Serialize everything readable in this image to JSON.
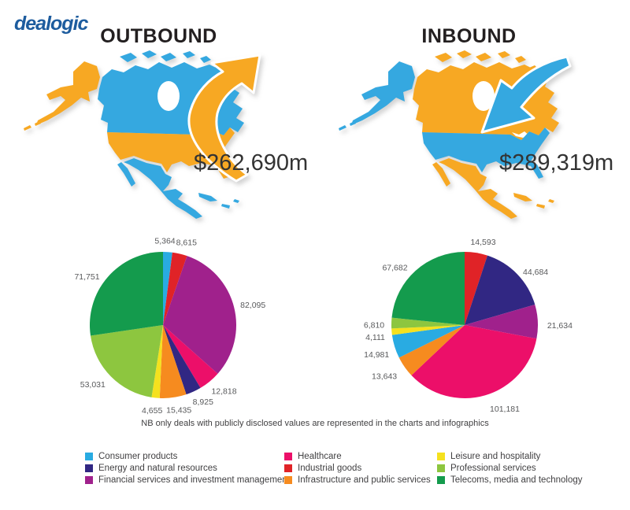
{
  "brand": {
    "logo_text": "dealogic"
  },
  "sections": {
    "outbound": {
      "title": "OUTBOUND",
      "total": "$262,690m"
    },
    "inbound": {
      "title": "INBOUND",
      "total": "$289,319m"
    }
  },
  "note": "NB only deals with publicly disclosed values are represented in the charts and infographics",
  "colors": {
    "logo": "#1D5C9E",
    "map_orange": "#F7A823",
    "map_blue": "#35A8E0",
    "heading_ink": "#231F20",
    "value_ink": "#333333",
    "label_ink": "#58595B",
    "categories": {
      "Consumer products": "#29ABE2",
      "Energy and natural resources": "#312783",
      "Financial services and investment management": "#A0218C",
      "Healthcare": "#EC0F69",
      "Industrial goods": "#E02327",
      "Infrastructure and public services": "#F68B1F",
      "Leisure and hospitality": "#F5E11E",
      "Professional services": "#8DC63F",
      "Telecoms, media and technology": "#149B4D"
    }
  },
  "legend": {
    "columns": [
      [
        "Consumer products",
        "Energy and natural resources",
        "Financial services and investment management"
      ],
      [
        "Healthcare",
        "Industrial goods",
        "Infrastructure and public services"
      ],
      [
        "Leisure and hospitality",
        "Professional services",
        "Telecoms, media and technology"
      ]
    ]
  },
  "chart_data": [
    {
      "type": "pie",
      "title": "OUTBOUND",
      "total_value": 262690,
      "total_label": "$262,690m",
      "start_angle": 0,
      "clockwise": true,
      "legend_position": "bottom-shared",
      "slices": [
        {
          "category": "Consumer products",
          "value": 5364,
          "label": "5,364",
          "label_offset": [
            -5,
            10
          ]
        },
        {
          "category": "Industrial goods",
          "value": 8615,
          "label": "8,615",
          "label_offset": [
            3,
            9
          ]
        },
        {
          "category": "Financial services and investment management",
          "value": 82095,
          "label": "82,095",
          "label_offset": [
            1,
            4
          ]
        },
        {
          "category": "Healthcare",
          "value": 12818,
          "label": "12,818",
          "label_offset": [
            3,
            -6
          ]
        },
        {
          "category": "Energy and natural resources",
          "value": 8925,
          "label": "8,925",
          "label_offset": [
            2,
            -9
          ]
        },
        {
          "category": "Infrastructure and public services",
          "value": 15435,
          "label": "15,435",
          "label_offset": [
            4,
            -8
          ]
        },
        {
          "category": "Leisure and hospitality",
          "value": 4655,
          "label": "4,655",
          "label_offset": [
            -2,
            -8
          ]
        },
        {
          "category": "Professional services",
          "value": 53031,
          "label": "53,031",
          "label_offset": [
            -6,
            -7
          ]
        },
        {
          "category": "Telecoms, media and technology",
          "value": 71751,
          "label": "71,751",
          "label_offset": [
            -8,
            15
          ]
        }
      ]
    },
    {
      "type": "pie",
      "title": "INBOUND",
      "total_value": 289319,
      "total_label": "$289,319m",
      "start_angle": 0,
      "clockwise": true,
      "legend_position": "bottom-shared",
      "slices": [
        {
          "category": "Industrial goods",
          "value": 14593,
          "label": "14,593",
          "label_offset": [
            5,
            10
          ]
        },
        {
          "category": "Energy and natural resources",
          "value": 44684,
          "label": "44,684",
          "label_offset": [
            6,
            14
          ]
        },
        {
          "category": "Financial services and investment management",
          "value": 21634,
          "label": "21,634",
          "label_offset": [
            4,
            6
          ]
        },
        {
          "category": "Healthcare",
          "value": 101181,
          "label": "101,181",
          "label_offset": [
            18,
            -6
          ]
        },
        {
          "category": "Infrastructure and public services",
          "value": 13643,
          "label": "13,643",
          "label_offset": [
            -6,
            -2
          ]
        },
        {
          "category": "Consumer products",
          "value": 14981,
          "label": "14,981",
          "label_offset": [
            0,
            3
          ]
        },
        {
          "category": "Leisure and hospitality",
          "value": 4111,
          "label": "4,111",
          "label_offset": [
            3,
            5
          ]
        },
        {
          "category": "Professional services",
          "value": 6810,
          "label": "6,810",
          "label_offset": [
            2,
            3
          ]
        },
        {
          "category": "Telecoms, media and technology",
          "value": 67682,
          "label": "67,682",
          "label_offset": [
            -10,
            14
          ]
        }
      ]
    }
  ]
}
